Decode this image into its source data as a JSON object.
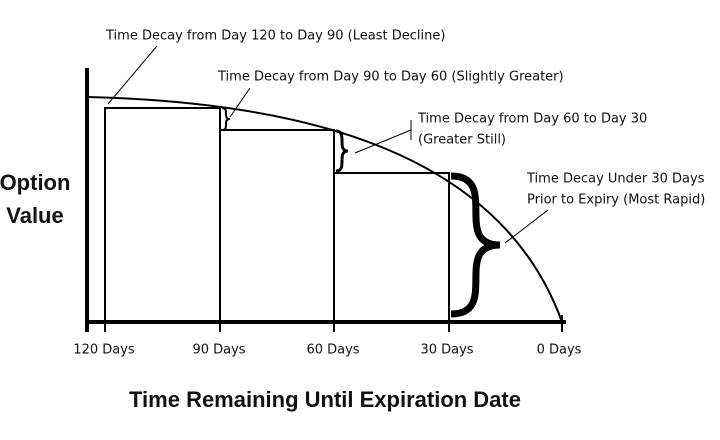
{
  "y_axis_label": [
    "Option",
    "Value"
  ],
  "x_axis_title": "Time Remaining Until Expiration Date",
  "x_labels": [
    "120 Days",
    "90 Days",
    "60 Days",
    "30 Days",
    "0 Days"
  ],
  "annotations": [
    {
      "lines": [
        "Time Decay from Day 120 to Day 90 (Least Decline)"
      ]
    },
    {
      "lines": [
        "Time Decay from Day 90 to Day 60 (Slightly Greater)"
      ]
    },
    {
      "lines": [
        "Time Decay from Day 60 to Day 30",
        "(Greater Still)"
      ]
    },
    {
      "lines": [
        "Time Decay Under 30 Days",
        "Prior to Expiry (Most Rapid)"
      ]
    }
  ]
}
